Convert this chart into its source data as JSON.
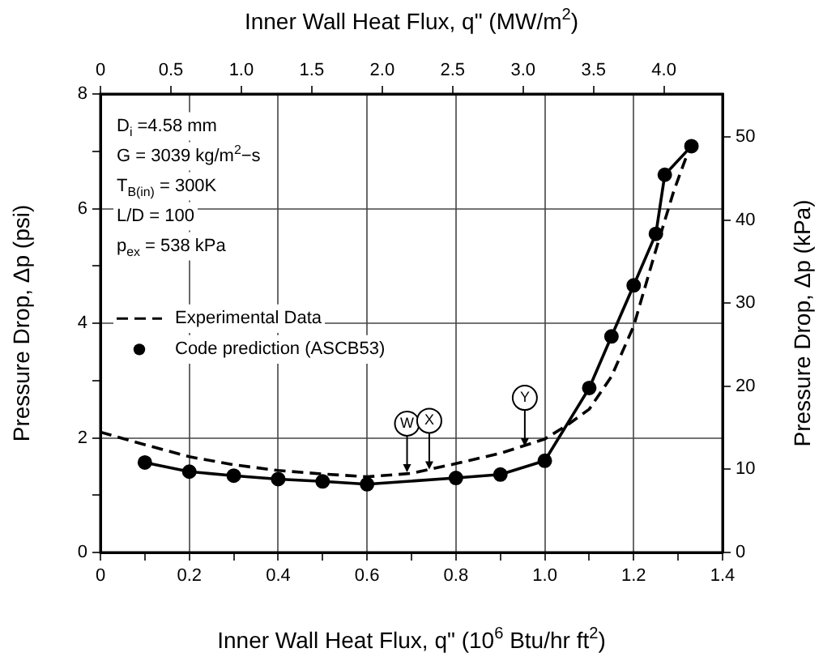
{
  "chart_data": {
    "type": "line",
    "xlabel": "Inner Wall Heat Flux, q\" (10$^{6}$ Btu/hr ft$^{2}$)",
    "x2label": "Inner Wall Heat Flux, q\" (MW/m$^{2}$)",
    "ylabel": "Pressure Drop, Δp (psi)",
    "y2label": "Pressure Drop, Δp (kPa)",
    "xlim": [
      0,
      1.4
    ],
    "xticks": [
      0,
      {
        "value": 0.1,
        "label": null
      },
      {
        "value": 0.2,
        "label": "0.2"
      },
      {
        "value": 0.3,
        "label": null
      },
      {
        "value": 0.4,
        "label": "0.4"
      },
      {
        "value": 0.5,
        "label": null
      },
      {
        "value": 0.6,
        "label": "0.6"
      },
      {
        "value": 0.7,
        "label": null
      },
      {
        "value": 0.8,
        "label": "0.8"
      },
      {
        "value": 0.9,
        "label": null
      },
      {
        "value": 1.0,
        "label": "1.0"
      },
      {
        "value": 1.1,
        "label": null
      },
      {
        "value": 1.2,
        "label": "1.2"
      },
      {
        "value": 1.3,
        "label": null
      },
      {
        "value": 1.4,
        "label": "1.4"
      }
    ],
    "x2lim": [
      0,
      4.416
    ],
    "x2ticks": [
      0,
      {
        "value": 0.5,
        "label": "0.5"
      },
      {
        "value": 1.0,
        "label": "1.0"
      },
      {
        "value": 1.5,
        "label": "1.5"
      },
      {
        "value": 2.0,
        "label": "2.0"
      },
      {
        "value": 2.5,
        "label": "2.5"
      },
      {
        "value": 3.0,
        "label": "3.0"
      },
      {
        "value": 3.5,
        "label": "3.5"
      },
      {
        "value": 4.0,
        "label": "4.0"
      }
    ],
    "ylim": [
      0,
      8
    ],
    "yticks": [
      0,
      {
        "value": 1,
        "label": null
      },
      2,
      {
        "value": 3,
        "label": null
      },
      4,
      {
        "value": 5,
        "label": null
      },
      6,
      {
        "value": 7,
        "label": null
      },
      8
    ],
    "y2lim": [
      0,
      55.16
    ],
    "y2ticks": [
      0,
      10,
      20,
      30,
      40,
      50
    ],
    "grid": true,
    "legend": "left",
    "series": [
      {
        "name": "Experimental Data",
        "color": "#000000",
        "line_style": "dashed",
        "marker": "none",
        "x": [
          0,
          0.1,
          0.2,
          0.3,
          0.4,
          0.5,
          0.6,
          0.7,
          0.8,
          0.9,
          1.0,
          1.05,
          1.1,
          1.15,
          1.2,
          1.25,
          1.29,
          1.33
        ],
        "values": [
          2.1,
          1.88,
          1.67,
          1.53,
          1.43,
          1.37,
          1.32,
          1.38,
          1.55,
          1.73,
          1.98,
          2.22,
          2.5,
          3.07,
          3.95,
          5.28,
          6.3,
          7.15
        ]
      },
      {
        "name": "Code prediction (ASCB53)",
        "color": "#000000",
        "line_style": "solid",
        "marker": "circle",
        "x": [
          0.1,
          0.2,
          0.3,
          0.4,
          0.5,
          0.6,
          0.8,
          0.9,
          1.0,
          1.1,
          1.15,
          1.2,
          1.25,
          1.27,
          1.33
        ],
        "values": [
          1.57,
          1.41,
          1.34,
          1.28,
          1.24,
          1.19,
          1.3,
          1.36,
          1.6,
          2.87,
          3.77,
          4.66,
          5.56,
          6.59,
          7.09
        ]
      }
    ],
    "annotations": [
      "D$_{i}$ =4.58 mm",
      "G = 3039 kg/m$^{2}$−s",
      "T$_{B(in)}$ = 300K",
      "L/D = 100",
      "p$_{ex}$ = 538 kPa",
      {
        "text": "W",
        "x": 0.69,
        "y": 1.4
      },
      {
        "text": "X",
        "x": 0.74,
        "y": 1.45
      },
      {
        "text": "Y",
        "x": 0.955,
        "y": 1.85
      }
    ]
  }
}
